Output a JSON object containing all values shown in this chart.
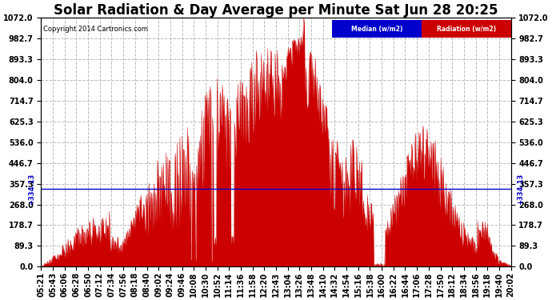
{
  "title": "Solar Radiation & Day Average per Minute Sat Jun 28 20:25",
  "copyright": "Copyright 2014 Cartronics.com",
  "legend_median_label": "Median (w/m2)",
  "legend_radiation_label": "Radiation (w/m2)",
  "legend_median_color": "#0000cc",
  "legend_radiation_color": "#cc0000",
  "background_color": "#ffffff",
  "plot_bg_color": "#ffffff",
  "y_ticks": [
    0.0,
    89.3,
    178.7,
    268.0,
    357.3,
    446.7,
    536.0,
    625.3,
    714.7,
    804.0,
    893.3,
    982.7,
    1072.0
  ],
  "y_min": 0.0,
  "y_max": 1072.0,
  "median_value": 334.13,
  "title_fontsize": 12,
  "tick_fontsize": 7,
  "x_tick_labels": [
    "05:21",
    "05:43",
    "06:06",
    "06:28",
    "06:50",
    "07:12",
    "07:34",
    "07:56",
    "08:18",
    "08:40",
    "09:02",
    "09:24",
    "09:46",
    "10:08",
    "10:30",
    "10:52",
    "11:14",
    "11:36",
    "11:58",
    "12:20",
    "12:43",
    "13:04",
    "13:26",
    "13:48",
    "14:10",
    "14:32",
    "14:54",
    "15:16",
    "15:38",
    "16:00",
    "16:22",
    "16:44",
    "17:06",
    "17:28",
    "17:50",
    "18:12",
    "18:34",
    "18:56",
    "19:18",
    "19:40",
    "20:02"
  ],
  "fill_color": "#cc0000",
  "grid_color": "#bbbbbb",
  "grid_linestyle": "--",
  "median_line_color": "#0000cc",
  "median_annotation_color": "#0000cc",
  "right_median_label": "334.13"
}
